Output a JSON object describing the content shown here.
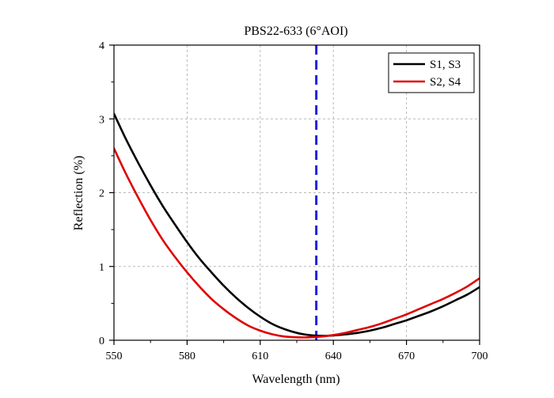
{
  "chart_data": {
    "type": "line",
    "title": "PBS22-633 (6°AOI)",
    "xlabel": "Wavelength (nm)",
    "ylabel": "Reflection (%)",
    "xlim": [
      550,
      700
    ],
    "ylim": [
      0,
      4
    ],
    "xticks": [
      550,
      580,
      610,
      640,
      670,
      700
    ],
    "yticks": [
      0,
      1,
      2,
      3,
      4
    ],
    "grid": true,
    "legend_position": "top-right",
    "reference_line": {
      "x": 633,
      "color": "#1f1fe0",
      "style": "dashed"
    },
    "series": [
      {
        "name": "S1, S3",
        "color": "#000000",
        "x": [
          550,
          555,
          560,
          565,
          570,
          575,
          580,
          585,
          590,
          595,
          600,
          605,
          610,
          615,
          620,
          625,
          630,
          635,
          640,
          645,
          650,
          655,
          660,
          665,
          670,
          675,
          680,
          685,
          690,
          695,
          700
        ],
        "y": [
          3.07,
          2.72,
          2.4,
          2.1,
          1.82,
          1.57,
          1.33,
          1.11,
          0.92,
          0.74,
          0.58,
          0.44,
          0.32,
          0.22,
          0.15,
          0.1,
          0.07,
          0.06,
          0.065,
          0.08,
          0.1,
          0.13,
          0.17,
          0.22,
          0.27,
          0.33,
          0.39,
          0.46,
          0.54,
          0.62,
          0.72
        ]
      },
      {
        "name": "S2, S4",
        "color": "#e00000",
        "x": [
          550,
          555,
          560,
          565,
          570,
          575,
          580,
          585,
          590,
          595,
          600,
          605,
          610,
          615,
          620,
          625,
          630,
          635,
          640,
          645,
          650,
          655,
          660,
          665,
          670,
          675,
          680,
          685,
          690,
          695,
          700
        ],
        "y": [
          2.6,
          2.25,
          1.93,
          1.63,
          1.36,
          1.13,
          0.92,
          0.73,
          0.56,
          0.42,
          0.3,
          0.2,
          0.13,
          0.08,
          0.05,
          0.04,
          0.04,
          0.05,
          0.07,
          0.1,
          0.14,
          0.18,
          0.23,
          0.29,
          0.35,
          0.42,
          0.49,
          0.56,
          0.64,
          0.73,
          0.84
        ]
      }
    ]
  }
}
